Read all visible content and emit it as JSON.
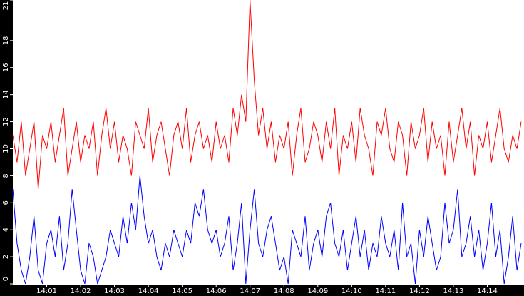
{
  "chart_data": {
    "type": "line",
    "categories": [
      null,
      null,
      null,
      null,
      null,
      null,
      null,
      null,
      "14:01",
      null,
      null,
      null,
      null,
      null,
      null,
      null,
      "14:02",
      null,
      null,
      null,
      null,
      null,
      null,
      null,
      "14:03",
      null,
      null,
      null,
      null,
      null,
      null,
      null,
      "14:04",
      null,
      null,
      null,
      null,
      null,
      null,
      null,
      "14:05",
      null,
      null,
      null,
      null,
      null,
      null,
      null,
      "14:06",
      null,
      null,
      null,
      null,
      null,
      null,
      null,
      "14:07",
      null,
      null,
      null,
      null,
      null,
      null,
      null,
      "14:08",
      null,
      null,
      null,
      null,
      null,
      null,
      null,
      "14:09",
      null,
      null,
      null,
      null,
      null,
      null,
      null,
      "14:10",
      null,
      null,
      null,
      null,
      null,
      null,
      null,
      "14:11",
      null,
      null,
      null,
      null,
      null,
      null,
      null,
      "14:12",
      null,
      null,
      null,
      null,
      null,
      null,
      null,
      "14:13",
      null,
      null,
      null,
      null,
      null,
      null,
      null,
      "14:14",
      null,
      null,
      null,
      null,
      null,
      null,
      null,
      null
    ],
    "series": [
      {
        "color": "#ff0000",
        "values": [
          11,
          9,
          12,
          8,
          10,
          12,
          7,
          11,
          10,
          12,
          9,
          11,
          13,
          8,
          10,
          12,
          9,
          11,
          10,
          12,
          8,
          11,
          13,
          10,
          12,
          9,
          11,
          10,
          8,
          12,
          11,
          10,
          13,
          9,
          11,
          12,
          10,
          8,
          11,
          12,
          10,
          13,
          9,
          11,
          12,
          10,
          11,
          9,
          12,
          10,
          11,
          9,
          13,
          11,
          14,
          12,
          21,
          15,
          11,
          13,
          10,
          12,
          9,
          11,
          10,
          12,
          8,
          11,
          13,
          9,
          10,
          12,
          11,
          9,
          12,
          10,
          13,
          8,
          11,
          10,
          12,
          9,
          13,
          11,
          10,
          8,
          12,
          11,
          13,
          10,
          9,
          12,
          11,
          8,
          12,
          10,
          11,
          13,
          9,
          12,
          10,
          11,
          8,
          12,
          9,
          11,
          13,
          10,
          12,
          8,
          11,
          10,
          12,
          9,
          11,
          13,
          10,
          9,
          11,
          10,
          12
        ]
      },
      {
        "color": "#0000ff",
        "values": [
          7,
          3,
          1,
          0,
          2,
          5,
          1,
          0,
          3,
          4,
          2,
          5,
          1,
          3,
          7,
          4,
          1,
          0,
          3,
          2,
          0,
          1,
          2,
          4,
          3,
          2,
          5,
          3,
          6,
          4,
          8,
          5,
          3,
          4,
          2,
          1,
          3,
          2,
          4,
          3,
          2,
          4,
          3,
          6,
          5,
          7,
          4,
          3,
          4,
          2,
          3,
          5,
          1,
          3,
          6,
          0,
          4,
          7,
          3,
          2,
          4,
          5,
          3,
          1,
          2,
          0,
          4,
          3,
          2,
          5,
          1,
          3,
          4,
          2,
          5,
          6,
          3,
          2,
          4,
          1,
          3,
          5,
          2,
          4,
          1,
          3,
          2,
          5,
          3,
          2,
          4,
          1,
          6,
          2,
          3,
          0,
          4,
          2,
          5,
          3,
          1,
          2,
          6,
          3,
          4,
          7,
          2,
          3,
          5,
          2,
          4,
          1,
          3,
          6,
          2,
          4,
          0,
          2,
          5,
          1,
          3
        ]
      }
    ],
    "ylim": [
      0,
      21
    ],
    "yticks": [
      0,
      2,
      4,
      6,
      8,
      10,
      12,
      14,
      16,
      18,
      21
    ]
  }
}
